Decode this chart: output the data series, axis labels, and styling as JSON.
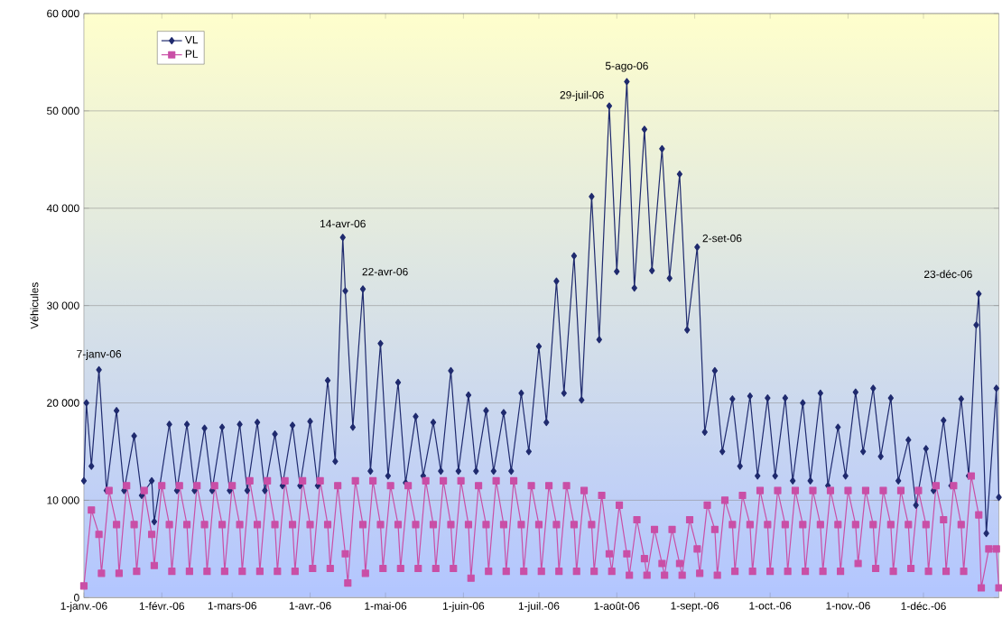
{
  "chart_data": {
    "type": "line",
    "ylabel": "Véhicules",
    "xlim": [
      "2006-01-01",
      "2006-12-31"
    ],
    "xticks": [
      {
        "value": "2006-01-01",
        "label": "1-janv.-06"
      },
      {
        "value": "2006-02-01",
        "label": "1-févr.-06"
      },
      {
        "value": "2006-03-01",
        "label": "1-mars-06"
      },
      {
        "value": "2006-04-01",
        "label": "1-avr.-06"
      },
      {
        "value": "2006-05-01",
        "label": "1-mai-06"
      },
      {
        "value": "2006-06-01",
        "label": "1-juin-06"
      },
      {
        "value": "2006-07-01",
        "label": "1-juil.-06"
      },
      {
        "value": "2006-08-01",
        "label": "1-août-06"
      },
      {
        "value": "2006-09-01",
        "label": "1-sept.-06"
      },
      {
        "value": "2006-10-01",
        "label": "1-oct.-06"
      },
      {
        "value": "2006-11-01",
        "label": "1-nov.-06"
      },
      {
        "value": "2006-12-01",
        "label": "1-déc.-06"
      }
    ],
    "ylim": [
      0,
      60000
    ],
    "yticks": [
      0,
      {
        "value": 10000,
        "label": "10 000"
      },
      {
        "value": 20000,
        "label": "20 000"
      },
      {
        "value": 30000,
        "label": "30 000"
      },
      {
        "value": 40000,
        "label": "40 000"
      },
      {
        "value": 50000,
        "label": "50 000"
      },
      {
        "value": 60000,
        "label": "60 000"
      }
    ],
    "grid": "y",
    "legend": "top left",
    "line_style": "solid",
    "series": [
      {
        "name": "VL",
        "color": "#1f2a6e",
        "marker": "diamond",
        "x": [
          "2006-01-01",
          "2006-01-02",
          "2006-01-04",
          "2006-01-07",
          "2006-01-10",
          "2006-01-14",
          "2006-01-17",
          "2006-01-21",
          "2006-01-24",
          "2006-01-28",
          "2006-01-29",
          "2006-02-04",
          "2006-02-07",
          "2006-02-11",
          "2006-02-14",
          "2006-02-18",
          "2006-02-21",
          "2006-02-25",
          "2006-02-28",
          "2006-03-04",
          "2006-03-07",
          "2006-03-11",
          "2006-03-14",
          "2006-03-18",
          "2006-03-21",
          "2006-03-25",
          "2006-03-28",
          "2006-04-01",
          "2006-04-04",
          "2006-04-08",
          "2006-04-11",
          "2006-04-14",
          "2006-04-15",
          "2006-04-18",
          "2006-04-22",
          "2006-04-25",
          "2006-04-29",
          "2006-05-02",
          "2006-05-06",
          "2006-05-09",
          "2006-05-13",
          "2006-05-16",
          "2006-05-20",
          "2006-05-23",
          "2006-05-27",
          "2006-05-30",
          "2006-06-03",
          "2006-06-06",
          "2006-06-10",
          "2006-06-13",
          "2006-06-17",
          "2006-06-20",
          "2006-06-24",
          "2006-06-27",
          "2006-07-01",
          "2006-07-04",
          "2006-07-08",
          "2006-07-11",
          "2006-07-15",
          "2006-07-18",
          "2006-07-22",
          "2006-07-25",
          "2006-07-29",
          "2006-08-01",
          "2006-08-05",
          "2006-08-08",
          "2006-08-12",
          "2006-08-15",
          "2006-08-19",
          "2006-08-22",
          "2006-08-26",
          "2006-08-29",
          "2006-09-02",
          "2006-09-05",
          "2006-09-09",
          "2006-09-12",
          "2006-09-16",
          "2006-09-19",
          "2006-09-23",
          "2006-09-26",
          "2006-09-30",
          "2006-10-03",
          "2006-10-07",
          "2006-10-10",
          "2006-10-14",
          "2006-10-17",
          "2006-10-21",
          "2006-10-24",
          "2006-10-28",
          "2006-10-31",
          "2006-11-04",
          "2006-11-07",
          "2006-11-11",
          "2006-11-14",
          "2006-11-18",
          "2006-11-21",
          "2006-11-25",
          "2006-11-28",
          "2006-12-02",
          "2006-12-05",
          "2006-12-09",
          "2006-12-12",
          "2006-12-16",
          "2006-12-19",
          "2006-12-22",
          "2006-12-23",
          "2006-12-26",
          "2006-12-30",
          "2006-12-31"
        ],
        "values": [
          12000,
          20000,
          13500,
          23400,
          11000,
          19200,
          11000,
          16600,
          10500,
          12000,
          7800,
          17800,
          11000,
          17800,
          11000,
          17400,
          11000,
          17500,
          11000,
          17800,
          11000,
          18000,
          11000,
          16800,
          11500,
          17700,
          11500,
          18100,
          11500,
          22300,
          14000,
          37000,
          31500,
          17500,
          31700,
          13000,
          26100,
          12500,
          22100,
          11800,
          18600,
          12500,
          18000,
          13000,
          23300,
          13000,
          20800,
          13000,
          19200,
          13000,
          19000,
          13000,
          21000,
          15000,
          25800,
          18000,
          32500,
          21000,
          35100,
          20300,
          41200,
          26500,
          50500,
          33500,
          53000,
          31800,
          48100,
          33600,
          46100,
          32800,
          43500,
          27500,
          36000,
          17000,
          23300,
          15000,
          20400,
          13500,
          20700,
          12500,
          20500,
          12500,
          20500,
          12000,
          20000,
          12000,
          21000,
          11500,
          17500,
          12500,
          21100,
          15000,
          21500,
          14500,
          20500,
          12000,
          16200,
          9500,
          15300,
          11000,
          18200,
          11500,
          20400,
          12500,
          28000,
          31200,
          6600,
          21500,
          10300
        ]
      },
      {
        "name": "PL",
        "color": "#c94fa6",
        "marker": "square",
        "x": [
          "2006-01-01",
          "2006-01-04",
          "2006-01-07",
          "2006-01-08",
          "2006-01-11",
          "2006-01-14",
          "2006-01-15",
          "2006-01-18",
          "2006-01-21",
          "2006-01-22",
          "2006-01-25",
          "2006-01-28",
          "2006-01-29",
          "2006-02-01",
          "2006-02-04",
          "2006-02-05",
          "2006-02-08",
          "2006-02-11",
          "2006-02-12",
          "2006-02-15",
          "2006-02-18",
          "2006-02-19",
          "2006-02-22",
          "2006-02-25",
          "2006-02-26",
          "2006-03-01",
          "2006-03-04",
          "2006-03-05",
          "2006-03-08",
          "2006-03-11",
          "2006-03-12",
          "2006-03-15",
          "2006-03-18",
          "2006-03-19",
          "2006-03-22",
          "2006-03-25",
          "2006-03-26",
          "2006-03-29",
          "2006-04-01",
          "2006-04-02",
          "2006-04-05",
          "2006-04-08",
          "2006-04-09",
          "2006-04-12",
          "2006-04-15",
          "2006-04-16",
          "2006-04-19",
          "2006-04-22",
          "2006-04-23",
          "2006-04-26",
          "2006-04-29",
          "2006-04-30",
          "2006-05-03",
          "2006-05-06",
          "2006-05-07",
          "2006-05-10",
          "2006-05-13",
          "2006-05-14",
          "2006-05-17",
          "2006-05-20",
          "2006-05-21",
          "2006-05-24",
          "2006-05-27",
          "2006-05-28",
          "2006-05-31",
          "2006-06-03",
          "2006-06-04",
          "2006-06-07",
          "2006-06-10",
          "2006-06-11",
          "2006-06-14",
          "2006-06-17",
          "2006-06-18",
          "2006-06-21",
          "2006-06-24",
          "2006-06-25",
          "2006-06-28",
          "2006-07-01",
          "2006-07-02",
          "2006-07-05",
          "2006-07-08",
          "2006-07-09",
          "2006-07-12",
          "2006-07-15",
          "2006-07-16",
          "2006-07-19",
          "2006-07-22",
          "2006-07-23",
          "2006-07-26",
          "2006-07-29",
          "2006-07-30",
          "2006-08-02",
          "2006-08-05",
          "2006-08-06",
          "2006-08-09",
          "2006-08-12",
          "2006-08-13",
          "2006-08-16",
          "2006-08-19",
          "2006-08-20",
          "2006-08-23",
          "2006-08-26",
          "2006-08-27",
          "2006-08-30",
          "2006-09-02",
          "2006-09-03",
          "2006-09-06",
          "2006-09-09",
          "2006-09-10",
          "2006-09-13",
          "2006-09-16",
          "2006-09-17",
          "2006-09-20",
          "2006-09-23",
          "2006-09-24",
          "2006-09-27",
          "2006-09-30",
          "2006-10-01",
          "2006-10-04",
          "2006-10-07",
          "2006-10-08",
          "2006-10-11",
          "2006-10-14",
          "2006-10-15",
          "2006-10-18",
          "2006-10-21",
          "2006-10-22",
          "2006-10-25",
          "2006-10-28",
          "2006-10-29",
          "2006-11-01",
          "2006-11-04",
          "2006-11-05",
          "2006-11-08",
          "2006-11-11",
          "2006-11-12",
          "2006-11-15",
          "2006-11-18",
          "2006-11-19",
          "2006-11-22",
          "2006-11-25",
          "2006-11-26",
          "2006-11-29",
          "2006-12-02",
          "2006-12-03",
          "2006-12-06",
          "2006-12-09",
          "2006-12-10",
          "2006-12-13",
          "2006-12-16",
          "2006-12-17",
          "2006-12-20",
          "2006-12-23",
          "2006-12-24",
          "2006-12-27",
          "2006-12-30",
          "2006-12-31"
        ],
        "values": [
          1200,
          9000,
          6500,
          2500,
          11000,
          7500,
          2500,
          11500,
          7500,
          2700,
          11000,
          6500,
          3300,
          11500,
          7500,
          2700,
          11500,
          7500,
          2700,
          11500,
          7500,
          2700,
          11500,
          7500,
          2700,
          11500,
          7500,
          2700,
          12000,
          7500,
          2700,
          12000,
          7500,
          2700,
          12000,
          7500,
          2700,
          12000,
          7500,
          3000,
          12000,
          7500,
          3000,
          11500,
          4500,
          1500,
          12000,
          7500,
          2500,
          12000,
          7500,
          3000,
          11500,
          7500,
          3000,
          11500,
          7500,
          3000,
          12000,
          7500,
          3000,
          12000,
          7500,
          3000,
          12000,
          7500,
          2000,
          11500,
          7500,
          2700,
          12000,
          7500,
          2700,
          12000,
          7500,
          2700,
          11500,
          7500,
          2700,
          11500,
          7500,
          2700,
          11500,
          7500,
          2700,
          11000,
          7500,
          2700,
          10500,
          4500,
          2700,
          9500,
          4500,
          2300,
          8000,
          4000,
          2300,
          7000,
          3500,
          2300,
          7000,
          3500,
          2300,
          8000,
          5000,
          2500,
          9500,
          7000,
          2300,
          10000,
          7500,
          2700,
          10500,
          7500,
          2700,
          11000,
          7500,
          2700,
          11000,
          7500,
          2700,
          11000,
          7500,
          2700,
          11000,
          7500,
          2700,
          11000,
          7500,
          2700,
          11000,
          7500,
          3500,
          11000,
          7500,
          3000,
          11000,
          7500,
          2700,
          11000,
          7500,
          3000,
          11000,
          7500,
          2700,
          11500,
          8000,
          2700,
          11500,
          7500,
          2700,
          12500,
          8500,
          1000,
          5000,
          5000,
          1000
        ]
      }
    ],
    "annotations": [
      {
        "text": "7-janv-06",
        "x": "2006-01-07",
        "y": 23400
      },
      {
        "text": "14-avr-06",
        "x": "2006-04-14",
        "y": 37000
      },
      {
        "text": "22-avr-06",
        "x": "2006-04-22",
        "y": 31700
      },
      {
        "text": "29-juil-06",
        "x": "2006-07-29",
        "y": 50500
      },
      {
        "text": "5-ago-06",
        "x": "2006-08-05",
        "y": 53000
      },
      {
        "text": "2-set-06",
        "x": "2006-09-02",
        "y": 36000
      },
      {
        "text": "23-déc-06",
        "x": "2006-12-23",
        "y": 31200
      }
    ]
  }
}
